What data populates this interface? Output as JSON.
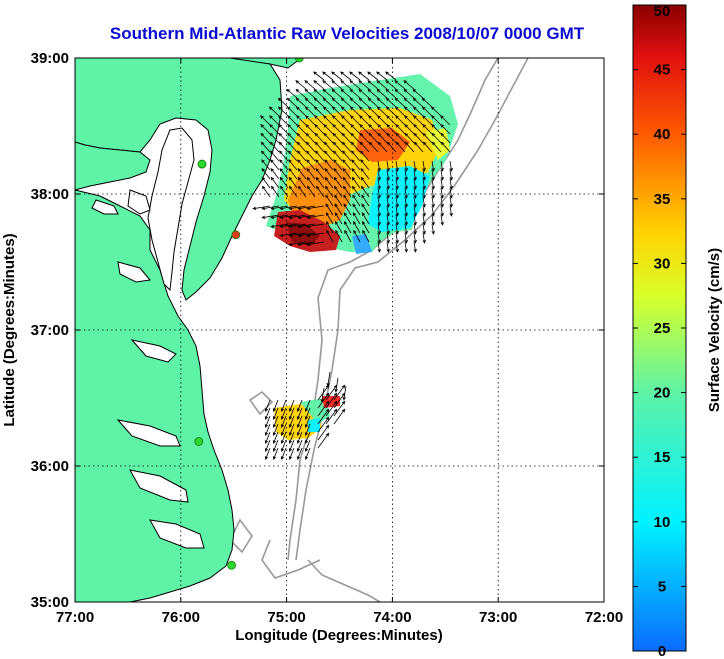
{
  "title": "Southern Mid-Atlantic Raw Velocities 2008/10/07 0000 GMT",
  "x_axis": {
    "label": "Longitude (Degrees:Minutes)",
    "ticks": [
      "77:00",
      "76:00",
      "75:00",
      "74:00",
      "73:00",
      "72:00"
    ],
    "tick_values": [
      -77,
      -76,
      -75,
      -74,
      -73,
      -72
    ]
  },
  "y_axis": {
    "label": "Latitude (Degrees:Minutes)",
    "ticks": [
      "39:00",
      "38:00",
      "37:00",
      "36:00",
      "35:00"
    ],
    "tick_values": [
      39,
      38,
      37,
      36,
      35
    ]
  },
  "colorbar": {
    "label": "Surface Velocity (cm/s)",
    "ticks": [
      "50",
      "45",
      "40",
      "35",
      "30",
      "25",
      "20",
      "15",
      "10",
      "5",
      "0"
    ],
    "range": [
      0,
      50
    ]
  },
  "map": {
    "lon_range": [
      -77,
      -72
    ],
    "lat_range": [
      35,
      39
    ],
    "grid": true,
    "colors": {
      "land": "#5ef3a7",
      "water": "#ffffff",
      "coast": "#000000",
      "bathymetry": "#999999",
      "station": "#2dd82d",
      "station_active": "#e33a1e"
    },
    "stations": [
      {
        "lon": -74.88,
        "lat": 39.0,
        "active": false
      },
      {
        "lon": -75.8,
        "lat": 38.22,
        "active": false
      },
      {
        "lon": -75.48,
        "lat": 37.7,
        "active": true
      },
      {
        "lon": -75.83,
        "lat": 36.18,
        "active": false
      },
      {
        "lon": -75.52,
        "lat": 35.27,
        "active": false
      }
    ]
  }
}
